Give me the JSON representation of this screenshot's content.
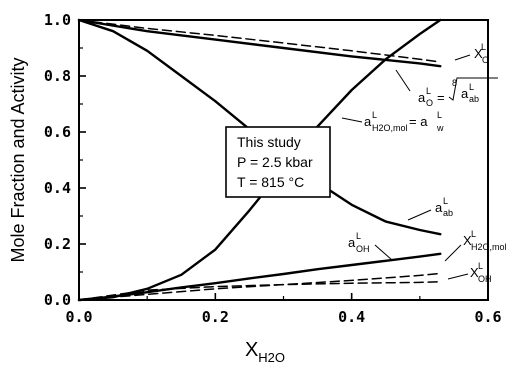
{
  "chart_data": {
    "type": "line",
    "xlabel": "X",
    "xlabel_sub": "H2O",
    "ylabel": "Mole Fraction and Activity",
    "xlim": [
      0.0,
      0.6
    ],
    "ylim": [
      0.0,
      1.0
    ],
    "xticks": [
      "0.0",
      "0.2",
      "0.4",
      "0.6"
    ],
    "yticks": [
      "0.0",
      "0.2",
      "0.4",
      "0.6",
      "0.8",
      "1.0"
    ],
    "grid": false,
    "annotation_box": {
      "line1": "This study",
      "line2": "P = 2.5 kbar",
      "line3": "T = 815 °C"
    },
    "series": [
      {
        "key": "x_o",
        "style": "dashed",
        "label_main": "X",
        "label_sup": "L",
        "label_sub": "O",
        "x": [
          0.0,
          0.1,
          0.2,
          0.3,
          0.4,
          0.5,
          0.53
        ],
        "y": [
          1.0,
          0.97,
          0.945,
          0.918,
          0.89,
          0.86,
          0.85
        ]
      },
      {
        "key": "a_o",
        "style": "solid",
        "label_main": "a",
        "label_sup": "L",
        "label_sub": "O",
        "label_rest": "= ",
        "label_root_index": "8",
        "label_root_main": "a",
        "label_root_sup": "L",
        "label_root_sub": "ab",
        "x": [
          0.0,
          0.1,
          0.2,
          0.3,
          0.4,
          0.5,
          0.53
        ],
        "y": [
          1.0,
          0.96,
          0.93,
          0.9,
          0.87,
          0.845,
          0.835
        ]
      },
      {
        "key": "a_w",
        "style": "solid",
        "label_main": "a",
        "label_sup": "L",
        "label_sub": "H2O,mol",
        "label_rest": " = a",
        "label_rest_sup": "L",
        "label_rest_sub": "w",
        "x": [
          0.0,
          0.05,
          0.1,
          0.15,
          0.2,
          0.25,
          0.3,
          0.35,
          0.4,
          0.45,
          0.5,
          0.53
        ],
        "y": [
          0.0,
          0.01,
          0.04,
          0.09,
          0.18,
          0.32,
          0.47,
          0.62,
          0.75,
          0.86,
          0.95,
          1.0
        ]
      },
      {
        "key": "a_ab",
        "style": "solid",
        "label_main": "a",
        "label_sup": "L",
        "label_sub": "ab",
        "x": [
          0.0,
          0.05,
          0.1,
          0.15,
          0.2,
          0.25,
          0.3,
          0.35,
          0.4,
          0.45,
          0.5,
          0.53
        ],
        "y": [
          1.0,
          0.96,
          0.89,
          0.8,
          0.71,
          0.61,
          0.51,
          0.42,
          0.34,
          0.28,
          0.25,
          0.235
        ]
      },
      {
        "key": "a_oh",
        "style": "solid",
        "label_main": "a",
        "label_sup": "L",
        "label_sub": "OH",
        "x": [
          0.0,
          0.05,
          0.1,
          0.15,
          0.2,
          0.25,
          0.3,
          0.35,
          0.4,
          0.45,
          0.5,
          0.53
        ],
        "y": [
          0.0,
          0.012,
          0.028,
          0.045,
          0.06,
          0.077,
          0.093,
          0.11,
          0.125,
          0.14,
          0.155,
          0.165
        ]
      },
      {
        "key": "x_h2o_mol",
        "style": "dashed",
        "label_main": "X",
        "label_sup": "L",
        "label_sub": "H2O,mol",
        "x": [
          0.0,
          0.1,
          0.2,
          0.3,
          0.4,
          0.5,
          0.53
        ],
        "y": [
          0.0,
          0.02,
          0.04,
          0.055,
          0.07,
          0.088,
          0.095
        ]
      },
      {
        "key": "x_oh",
        "style": "dashed",
        "label_main": "X",
        "label_sup": "L",
        "label_sub": "OH",
        "x": [
          0.0,
          0.1,
          0.2,
          0.3,
          0.4,
          0.5,
          0.53
        ],
        "y": [
          0.0,
          0.035,
          0.048,
          0.055,
          0.06,
          0.063,
          0.065
        ]
      }
    ]
  }
}
